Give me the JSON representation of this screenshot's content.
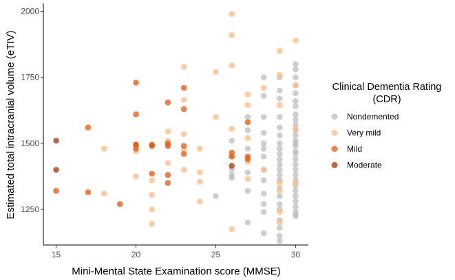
{
  "chart_data": {
    "type": "scatter",
    "title": "",
    "xlabel": "Mini-Mental State Examination score (MMSE)",
    "ylabel": "Estimated total intracranial volume (eTIV)",
    "xlim": [
      14.2,
      30.8
    ],
    "ylim": [
      1115,
      2030
    ],
    "x_ticks": [
      15,
      20,
      25,
      30
    ],
    "y_ticks": [
      1250,
      1500,
      1750,
      2000
    ],
    "x_tick_labels": [
      "15",
      "20",
      "25",
      "30"
    ],
    "y_tick_labels": [
      "1250",
      "1500",
      "1750",
      "2000"
    ],
    "grid": false,
    "legend": {
      "title_line1": "Clinical Dementia Rating",
      "title_line2": "(CDR)",
      "placement": "right"
    },
    "series": [
      {
        "name": "Nondemented",
        "color": "#bdbdbd",
        "points": [
          [
            25,
            1300
          ],
          [
            26,
            1370
          ],
          [
            26,
            1400
          ],
          [
            26,
            1380
          ],
          [
            26,
            1510
          ],
          [
            27,
            1600
          ],
          [
            27,
            1550
          ],
          [
            27,
            1480
          ],
          [
            27,
            1390
          ],
          [
            27,
            1320
          ],
          [
            27,
            1200
          ],
          [
            28,
            1750
          ],
          [
            28,
            1680
          ],
          [
            28,
            1600
          ],
          [
            28,
            1540
          ],
          [
            28,
            1500
          ],
          [
            28,
            1480
          ],
          [
            28,
            1450
          ],
          [
            28,
            1400
          ],
          [
            28,
            1360
          ],
          [
            28,
            1310
          ],
          [
            28,
            1270
          ],
          [
            28,
            1240
          ],
          [
            28,
            1160
          ],
          [
            29,
            1750
          ],
          [
            29,
            1700
          ],
          [
            29,
            1670
          ],
          [
            29,
            1600
          ],
          [
            29,
            1560
          ],
          [
            29,
            1530
          ],
          [
            29,
            1500
          ],
          [
            29,
            1480
          ],
          [
            29,
            1460
          ],
          [
            29,
            1440
          ],
          [
            29,
            1420
          ],
          [
            29,
            1400
          ],
          [
            29,
            1380
          ],
          [
            29,
            1360
          ],
          [
            29,
            1330
          ],
          [
            29,
            1300
          ],
          [
            29,
            1270
          ],
          [
            29,
            1250
          ],
          [
            29,
            1210
          ],
          [
            29,
            1180
          ],
          [
            29,
            1150
          ],
          [
            29,
            1130
          ],
          [
            30,
            1800
          ],
          [
            30,
            1780
          ],
          [
            30,
            1750
          ],
          [
            30,
            1720
          ],
          [
            30,
            1690
          ],
          [
            30,
            1660
          ],
          [
            30,
            1640
          ],
          [
            30,
            1610
          ],
          [
            30,
            1590
          ],
          [
            30,
            1570
          ],
          [
            30,
            1550
          ],
          [
            30,
            1530
          ],
          [
            30,
            1510
          ],
          [
            30,
            1500
          ],
          [
            30,
            1490
          ],
          [
            30,
            1470
          ],
          [
            30,
            1460
          ],
          [
            30,
            1440
          ],
          [
            30,
            1420
          ],
          [
            30,
            1400
          ],
          [
            30,
            1380
          ],
          [
            30,
            1360
          ],
          [
            30,
            1340
          ],
          [
            30,
            1320
          ],
          [
            30,
            1300
          ],
          [
            30,
            1280
          ],
          [
            30,
            1260
          ],
          [
            30,
            1240
          ],
          [
            30,
            1230
          ],
          [
            30,
            1225
          ]
        ]
      },
      {
        "name": "Very mild",
        "color": "#fdbb84",
        "points": [
          [
            18,
            1480
          ],
          [
            18,
            1310
          ],
          [
            20,
            1470
          ],
          [
            20,
            1375
          ],
          [
            21,
            1360
          ],
          [
            21,
            1305
          ],
          [
            21,
            1250
          ],
          [
            21,
            1195
          ],
          [
            22,
            1545
          ],
          [
            22,
            1510
          ],
          [
            22,
            1425
          ],
          [
            23,
            1790
          ],
          [
            23,
            1665
          ],
          [
            23,
            1535
          ],
          [
            23,
            1475
          ],
          [
            23,
            1400
          ],
          [
            24,
            1480
          ],
          [
            24,
            1390
          ],
          [
            24,
            1355
          ],
          [
            24,
            1280
          ],
          [
            25,
            1770
          ],
          [
            25,
            1600
          ],
          [
            26,
            1990
          ],
          [
            26,
            1910
          ],
          [
            26,
            1795
          ],
          [
            26,
            1555
          ],
          [
            26,
            1450
          ],
          [
            26,
            1175
          ],
          [
            27,
            1685
          ],
          [
            27,
            1645
          ],
          [
            27,
            1520
          ],
          [
            27,
            1430
          ],
          [
            27,
            1365
          ],
          [
            28,
            1710
          ],
          [
            28,
            1400
          ],
          [
            29,
            1850
          ],
          [
            29,
            1760
          ],
          [
            29,
            1645
          ],
          [
            29,
            1350
          ],
          [
            29,
            1320
          ],
          [
            29,
            1240
          ],
          [
            29,
            1200
          ],
          [
            30,
            1890
          ],
          [
            30,
            1720
          ],
          [
            30,
            1555
          ],
          [
            30,
            1350
          ]
        ]
      },
      {
        "name": "Mild",
        "color": "#e6550d",
        "points": [
          [
            15,
            1320
          ],
          [
            17,
            1560
          ],
          [
            17,
            1315
          ],
          [
            19,
            1270
          ],
          [
            20,
            1730
          ],
          [
            20,
            1610
          ],
          [
            20,
            1495
          ],
          [
            20,
            1495
          ],
          [
            20,
            1480
          ],
          [
            21,
            1495
          ],
          [
            21,
            1490
          ],
          [
            21,
            1385
          ],
          [
            22,
            1655
          ],
          [
            22,
            1500
          ],
          [
            22,
            1490
          ],
          [
            22,
            1380
          ],
          [
            22,
            1350
          ],
          [
            23,
            1710
          ],
          [
            23,
            1630
          ],
          [
            23,
            1490
          ],
          [
            23,
            1460
          ],
          [
            26,
            1465
          ],
          [
            26,
            1450
          ],
          [
            27,
            1580
          ],
          [
            27,
            1450
          ],
          [
            27,
            1440
          ]
        ]
      },
      {
        "name": "Moderate",
        "color": "#a63603",
        "points": [
          [
            15,
            1510
          ],
          [
            15,
            1400
          ],
          [
            26,
            1415
          ]
        ]
      }
    ]
  }
}
